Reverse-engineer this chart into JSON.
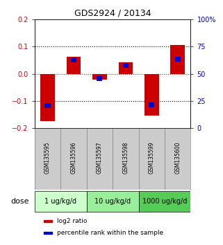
{
  "title": "GDS2924 / 20134",
  "samples": [
    "GSM135595",
    "GSM135596",
    "GSM135597",
    "GSM135598",
    "GSM135599",
    "GSM135600"
  ],
  "log2_ratio": [
    -0.175,
    0.062,
    -0.022,
    0.042,
    -0.155,
    0.107
  ],
  "percentile_rank_norm": [
    -0.118,
    0.05,
    -0.018,
    0.03,
    -0.115,
    0.055
  ],
  "ylim_left": [
    -0.2,
    0.2
  ],
  "ylim_right": [
    0,
    100
  ],
  "yticks_left": [
    -0.2,
    -0.1,
    0.0,
    0.1,
    0.2
  ],
  "yticks_right": [
    0,
    25,
    50,
    75,
    100
  ],
  "ytick_labels_right": [
    "0",
    "25",
    "50",
    "75",
    "100%"
  ],
  "red_color": "#cc0000",
  "blue_color": "#0000cc",
  "dose_groups": [
    {
      "label": "1 ug/kg/d",
      "color": "#ccffcc"
    },
    {
      "label": "10 ug/kg/d",
      "color": "#99ee99"
    },
    {
      "label": "1000 ug/kg/d",
      "color": "#55cc55"
    }
  ],
  "legend_red": "log2 ratio",
  "legend_blue": "percentile rank within the sample",
  "dose_label": "dose",
  "sample_box_color": "#cccccc"
}
